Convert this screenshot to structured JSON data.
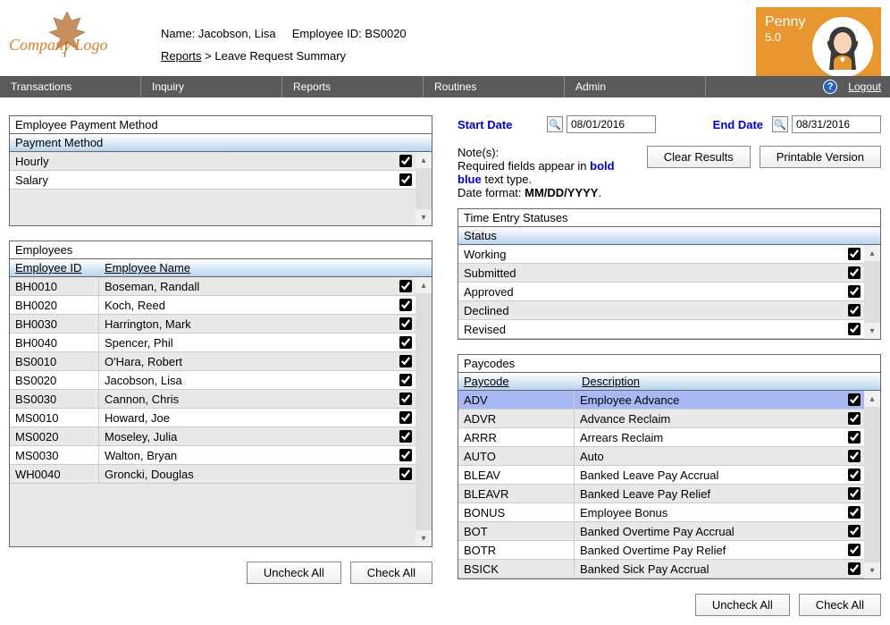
{
  "header": {
    "logo_text": "Company Logo",
    "name_label": "Name:",
    "name_value": "Jacobson, Lisa",
    "empid_label": "Employee ID:",
    "empid_value": "BS0020",
    "breadcrumb_root": "Reports",
    "breadcrumb_sep": ">",
    "breadcrumb_leaf": "Leave Request Summary"
  },
  "brand": {
    "name": "Penny",
    "version": "5.0"
  },
  "menu": {
    "items": [
      "Transactions",
      "Inquiry",
      "Reports",
      "Routines",
      "Admin"
    ],
    "logout": "Logout"
  },
  "payment_method": {
    "title": "Employee Payment Method",
    "header": "Payment Method",
    "rows": [
      {
        "label": "Hourly",
        "checked": true
      },
      {
        "label": "Salary",
        "checked": true
      }
    ]
  },
  "employees": {
    "title": "Employees",
    "col1": "Employee ID",
    "col2": "Employee Name",
    "rows": [
      {
        "id": "BH0010",
        "name": "Boseman, Randall",
        "checked": true
      },
      {
        "id": "BH0020",
        "name": "Koch, Reed",
        "checked": true
      },
      {
        "id": "BH0030",
        "name": "Harrington, Mark",
        "checked": true
      },
      {
        "id": "BH0040",
        "name": "Spencer, Phil",
        "checked": true
      },
      {
        "id": "BS0010",
        "name": "O'Hara, Robert",
        "checked": true
      },
      {
        "id": "BS0020",
        "name": "Jacobson, Lisa",
        "checked": true
      },
      {
        "id": "BS0030",
        "name": "Cannon, Chris",
        "checked": true
      },
      {
        "id": "MS0010",
        "name": "Howard, Joe",
        "checked": true
      },
      {
        "id": "MS0020",
        "name": "Moseley, Julia",
        "checked": true
      },
      {
        "id": "MS0030",
        "name": "Walton, Bryan",
        "checked": true
      },
      {
        "id": "WH0040",
        "name": "Groncki, Douglas",
        "checked": true
      }
    ]
  },
  "dates": {
    "start_label": "Start Date",
    "start_value": "08/01/2016",
    "end_label": "End Date",
    "end_value": "08/31/2016"
  },
  "notes": {
    "label": "Note(s):",
    "line1_pre": "Required fields appear in ",
    "line1_bold": "bold blue",
    "line1_post": " text type.",
    "line2_pre": "Date format: ",
    "line2_bold": "MM/DD/YYYY",
    "line2_post": "."
  },
  "buttons": {
    "clear_results": "Clear Results",
    "printable": "Printable Version",
    "uncheck_all": "Uncheck All",
    "check_all": "Check All"
  },
  "statuses": {
    "title": "Time Entry Statuses",
    "header": "Status",
    "rows": [
      {
        "label": "Working",
        "checked": true
      },
      {
        "label": "Submitted",
        "checked": true
      },
      {
        "label": "Approved",
        "checked": true
      },
      {
        "label": "Declined",
        "checked": true
      },
      {
        "label": "Revised",
        "checked": true
      }
    ]
  },
  "paycodes": {
    "title": "Paycodes",
    "col1": "Paycode",
    "col2": "Description",
    "rows": [
      {
        "code": "ADV",
        "desc": "Employee Advance",
        "checked": true,
        "selected": true
      },
      {
        "code": "ADVR",
        "desc": "Advance Reclaim",
        "checked": true
      },
      {
        "code": "ARRR",
        "desc": "Arrears Reclaim",
        "checked": true
      },
      {
        "code": "AUTO",
        "desc": "Auto",
        "checked": true
      },
      {
        "code": "BLEAV",
        "desc": "Banked Leave Pay Accrual",
        "checked": true
      },
      {
        "code": "BLEAVR",
        "desc": "Banked Leave Pay Relief",
        "checked": true
      },
      {
        "code": "BONUS",
        "desc": "Employee Bonus",
        "checked": true
      },
      {
        "code": "BOT",
        "desc": "Banked Overtime Pay Accrual",
        "checked": true
      },
      {
        "code": "BOTR",
        "desc": "Banked Overtime Pay Relief",
        "checked": true
      },
      {
        "code": "BSICK",
        "desc": "Banked Sick Pay Accrual",
        "checked": true
      }
    ]
  }
}
